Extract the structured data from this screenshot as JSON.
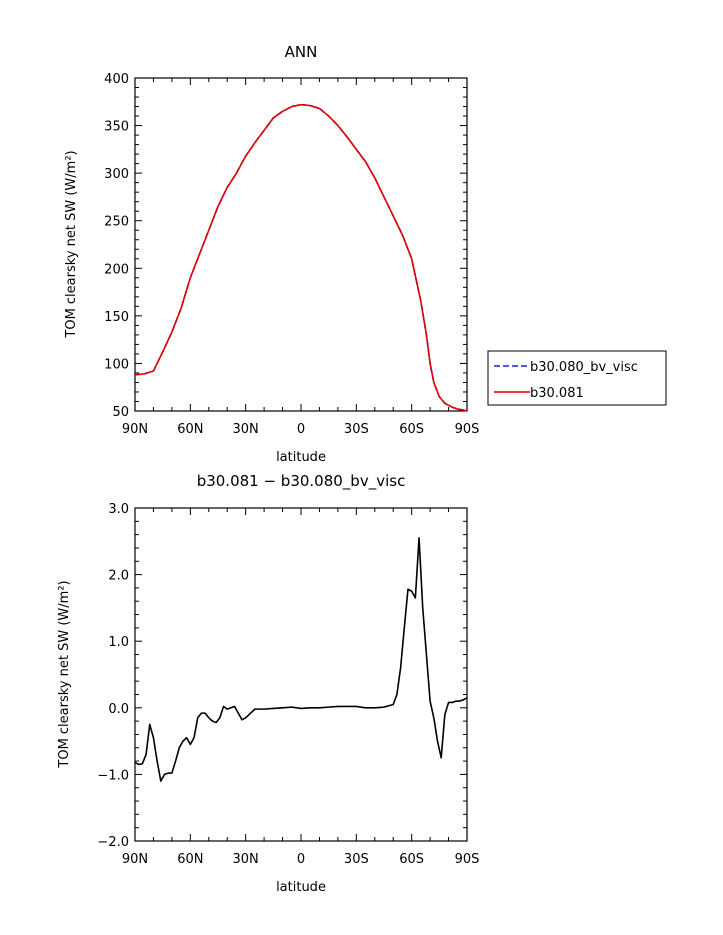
{
  "chart_data": [
    {
      "type": "line",
      "title": "ANN",
      "xlabel": "latitude",
      "ylabel": "TOM clearsky net SW (W/m²)",
      "xlim": [
        90,
        -90
      ],
      "ylim": [
        50,
        400
      ],
      "xticks": [
        90,
        60,
        30,
        0,
        -30,
        -60,
        -90
      ],
      "xtick_labels": [
        "90N",
        "60N",
        "30N",
        "0",
        "30S",
        "60S",
        "90S"
      ],
      "yticks": [
        50,
        100,
        150,
        200,
        250,
        300,
        350,
        400
      ],
      "ytick_labels": [
        "50",
        "100",
        "150",
        "200",
        "250",
        "300",
        "350",
        "400"
      ],
      "grid": false,
      "legend_position": "right",
      "x": [
        90,
        85,
        80,
        75,
        70,
        65,
        60,
        55,
        50,
        45,
        40,
        35,
        30,
        25,
        20,
        15,
        10,
        5,
        0,
        -5,
        -10,
        -15,
        -20,
        -25,
        -30,
        -35,
        -40,
        -45,
        -50,
        -55,
        -60,
        -65,
        -68,
        -70,
        -72,
        -75,
        -78,
        -80,
        -82,
        -85,
        -88,
        -90
      ],
      "series": [
        {
          "name": "b30.080_bv_visc",
          "color": "#1f1fd6",
          "dash": "dashed",
          "values": [
            88,
            89,
            92,
            112,
            133,
            158,
            190,
            215,
            240,
            265,
            285,
            300,
            318,
            332,
            345,
            358,
            365,
            370,
            372,
            371,
            368,
            360,
            350,
            338,
            325,
            312,
            295,
            275,
            255,
            235,
            210,
            165,
            130,
            100,
            80,
            65,
            58,
            56,
            54,
            52,
            51,
            50
          ]
        },
        {
          "name": "b30.081",
          "color": "#e00000",
          "dash": "solid",
          "values": [
            88,
            89,
            92,
            112,
            133,
            158,
            190,
            215,
            240,
            265,
            285,
            300,
            318,
            332,
            345,
            358,
            365,
            370,
            372,
            371,
            368,
            360,
            350,
            338,
            325,
            312,
            295,
            275,
            255,
            235,
            210,
            165,
            130,
            100,
            80,
            65,
            58,
            56,
            54,
            52,
            51,
            50
          ]
        }
      ]
    },
    {
      "type": "line",
      "title": "b30.081 − b30.080_bv_visc",
      "xlabel": "latitude",
      "ylabel": "TOM clearsky net SW (W/m²)",
      "xlim": [
        90,
        -90
      ],
      "ylim": [
        -2.0,
        3.0
      ],
      "xticks": [
        90,
        60,
        30,
        0,
        -30,
        -60,
        -90
      ],
      "xtick_labels": [
        "90N",
        "60N",
        "30N",
        "0",
        "30S",
        "60S",
        "90S"
      ],
      "yticks": [
        -2.0,
        -1.0,
        0.0,
        1.0,
        2.0,
        3.0
      ],
      "ytick_labels": [
        "−2.0",
        "−1.0",
        "0.0",
        "1.0",
        "2.0",
        "3.0"
      ],
      "grid": false,
      "x": [
        90,
        88,
        86,
        84,
        82,
        80,
        78,
        76,
        74,
        72,
        70,
        68,
        66,
        64,
        62,
        60,
        58,
        56,
        54,
        52,
        50,
        48,
        46,
        44,
        42,
        40,
        38,
        36,
        34,
        32,
        30,
        25,
        20,
        15,
        10,
        5,
        0,
        -5,
        -10,
        -15,
        -20,
        -25,
        -30,
        -35,
        -40,
        -45,
        -50,
        -52,
        -54,
        -56,
        -58,
        -60,
        -62,
        -64,
        -66,
        -68,
        -70,
        -72,
        -74,
        -76,
        -78,
        -80,
        -82,
        -84,
        -86,
        -88,
        -90
      ],
      "series": [
        {
          "name": "",
          "color": "#000000",
          "dash": "solid",
          "values": [
            -0.82,
            -0.85,
            -0.84,
            -0.7,
            -0.25,
            -0.45,
            -0.8,
            -1.1,
            -1.0,
            -0.98,
            -0.98,
            -0.8,
            -0.6,
            -0.5,
            -0.45,
            -0.55,
            -0.45,
            -0.15,
            -0.08,
            -0.08,
            -0.15,
            -0.2,
            -0.22,
            -0.15,
            0.02,
            -0.02,
            0.0,
            0.02,
            -0.08,
            -0.18,
            -0.15,
            -0.02,
            -0.02,
            -0.01,
            0.0,
            0.01,
            -0.01,
            0.0,
            0.0,
            0.01,
            0.02,
            0.02,
            0.02,
            0.0,
            0.0,
            0.01,
            0.05,
            0.2,
            0.6,
            1.2,
            1.78,
            1.75,
            1.65,
            2.55,
            1.5,
            0.8,
            0.1,
            -0.15,
            -0.5,
            -0.75,
            -0.1,
            0.08,
            0.08,
            0.1,
            0.1,
            0.12,
            0.15
          ]
        }
      ]
    }
  ]
}
